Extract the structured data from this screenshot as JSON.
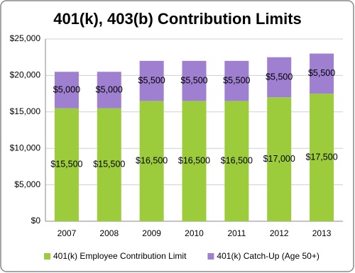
{
  "chart_data": {
    "type": "stacked-bar",
    "title": "401(k), 403(b) Contribution Limits",
    "categories": [
      "2007",
      "2008",
      "2009",
      "2010",
      "2011",
      "2012",
      "2013"
    ],
    "series": [
      {
        "name": "401(k) Employee Contribution Limit",
        "color": "#9ccc3c",
        "values": [
          15500,
          15500,
          16500,
          16500,
          16500,
          17000,
          17500
        ],
        "value_labels": [
          "$15,500",
          "$15,500",
          "$16,500",
          "$16,500",
          "$16,500",
          "$17,000",
          "$17,500"
        ]
      },
      {
        "name": "401(k) Catch-Up (Age 50+)",
        "color": "#9f7fcf",
        "values": [
          5000,
          5000,
          5500,
          5500,
          5500,
          5500,
          5500
        ],
        "value_labels": [
          "$5,000",
          "$5,000",
          "$5,500",
          "$5,500",
          "$5,500",
          "$5,500",
          "$5,500"
        ]
      }
    ],
    "ylim": [
      0,
      25000
    ],
    "yticks": [
      {
        "value": 0,
        "label": "$0"
      },
      {
        "value": 5000,
        "label": "$5,000"
      },
      {
        "value": 10000,
        "label": "$10,000"
      },
      {
        "value": 15000,
        "label": "$15,000"
      },
      {
        "value": 20000,
        "label": "$20,000"
      },
      {
        "value": 25000,
        "label": "$25,000"
      }
    ],
    "grid": true,
    "legend": "bottom"
  }
}
